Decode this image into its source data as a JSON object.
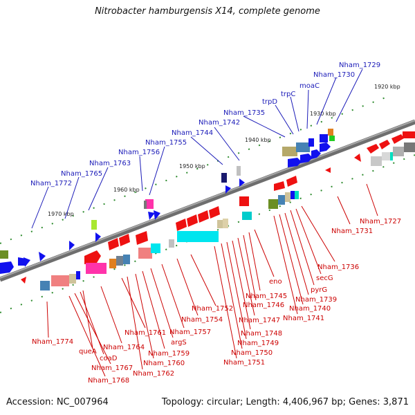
{
  "title": "Nitrobacter hamburgensis X14, complete genome",
  "accession": "Accession: NC_007964",
  "stats": "Topology: circular; Length: 4,406,967 bp; Genes: 3,871",
  "colors": {
    "backbone": "#808080",
    "blue_label": "#1a1ab8",
    "red_label": "#cc0000",
    "feature_red": "#ee1111",
    "feature_blue": "#1111ee",
    "tick_green": "#228b22"
  },
  "ticks": [
    {
      "label": "1920 kbp"
    },
    {
      "label": "1930 kbp"
    },
    {
      "label": "1940 kbp"
    },
    {
      "label": "1950 kbp"
    },
    {
      "label": "1960 kbp"
    },
    {
      "label": "1970 kbp"
    }
  ],
  "blue_labels": [
    "Nham_1729",
    "Nham_1730",
    "moaC",
    "trpC",
    "trpD",
    "Nham_1735",
    "Nham_1742",
    "Nham_1744",
    "Nham_1755",
    "Nham_1756",
    "Nham_1763",
    "Nham_1765",
    "Nham_1772"
  ],
  "red_labels": [
    "Nham_1727",
    "Nham_1731",
    "Nham_1736",
    "secG",
    "pyrG",
    "Nham_1739",
    "Nham_1740",
    "Nham_1741",
    "eno",
    "Nham_1745",
    "Nham_1746",
    "Nham_1747",
    "Nham_1748",
    "Nham_1749",
    "Nham_1750",
    "Nham_1751",
    "Nham_1752",
    "Nham_1754",
    "Nham_1757",
    "argS",
    "Nham_1759",
    "Nham_1760",
    "Nham_1761",
    "Nham_1762",
    "Nham_1764",
    "queA",
    "coaD",
    "Nham_1767",
    "Nham_1768",
    "Nham_1774"
  ]
}
